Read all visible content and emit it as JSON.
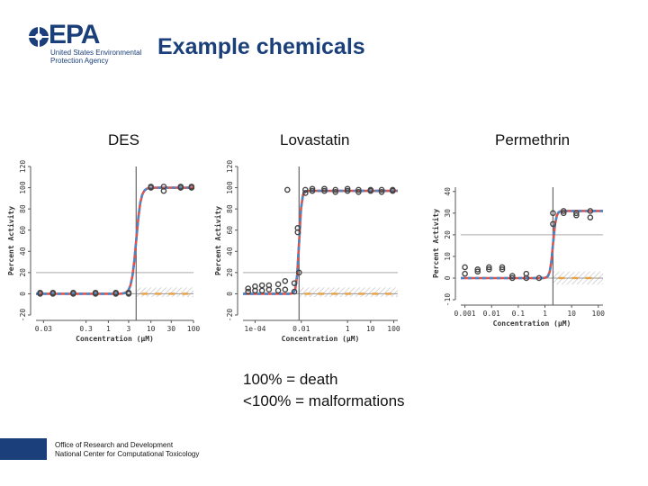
{
  "logo": {
    "name": "EPA",
    "subtitle": "United States Environmental Protection Agency"
  },
  "title": "Example chemicals",
  "note": {
    "line1": "100% = death",
    "line2": "<100% = malformations"
  },
  "footer": {
    "line1": "Office of Research and Development",
    "line2": "National Center for Computational Toxicology"
  },
  "colors": {
    "brand": "#1a3f7a",
    "fit_blue": "#4a86c8",
    "fit_red": "#d9534f",
    "orange": "#e8a040",
    "points": "#444444"
  },
  "chart_data": [
    {
      "type": "scatter",
      "title": "DES",
      "xlabel": "Concentration (µM)",
      "ylabel": "Percent Activity",
      "xscale": "log",
      "xticks": [
        0.03,
        0.3,
        1,
        3,
        10,
        30,
        100
      ],
      "xticklabels": [
        "0.03",
        "0.3",
        "1",
        "3",
        "10",
        "30",
        "100"
      ],
      "xlim": [
        0.02,
        100
      ],
      "yticks": [
        -20,
        0,
        20,
        40,
        60,
        80,
        100,
        120
      ],
      "ylim": [
        -20,
        120
      ],
      "cutoff": 20,
      "ac50": 4.5,
      "top": 100,
      "points": [
        [
          0.025,
          0
        ],
        [
          0.025,
          1
        ],
        [
          0.05,
          0
        ],
        [
          0.05,
          1
        ],
        [
          0.15,
          0
        ],
        [
          0.15,
          1
        ],
        [
          0.5,
          0
        ],
        [
          0.5,
          1
        ],
        [
          1.5,
          0
        ],
        [
          1.5,
          1
        ],
        [
          3,
          0
        ],
        [
          3,
          1
        ],
        [
          10,
          100
        ],
        [
          10,
          101
        ],
        [
          20,
          97
        ],
        [
          20,
          101
        ],
        [
          50,
          100
        ],
        [
          50,
          101
        ],
        [
          90,
          100
        ],
        [
          90,
          101
        ]
      ]
    },
    {
      "type": "scatter",
      "title": "Lovastatin",
      "xlabel": "Concentration (µM)",
      "ylabel": "Percent Activity",
      "xscale": "log",
      "xticks": [
        0.0001,
        0.01,
        1,
        10,
        100
      ],
      "xticklabels": [
        "1e-04",
        "0.01",
        "1",
        "10",
        "100"
      ],
      "xlim": [
        3e-05,
        150
      ],
      "yticks": [
        -20,
        0,
        20,
        40,
        60,
        80,
        100,
        120
      ],
      "ylim": [
        -20,
        120
      ],
      "cutoff": 20,
      "ac50": 0.008,
      "top": 97,
      "points": [
        [
          5e-05,
          2
        ],
        [
          5e-05,
          5
        ],
        [
          0.0001,
          3
        ],
        [
          0.0001,
          7
        ],
        [
          0.0002,
          3
        ],
        [
          0.0002,
          8
        ],
        [
          0.0004,
          4
        ],
        [
          0.0004,
          8
        ],
        [
          0.001,
          3
        ],
        [
          0.001,
          9
        ],
        [
          0.002,
          4
        ],
        [
          0.002,
          12
        ],
        [
          0.005,
          2
        ],
        [
          0.005,
          10
        ],
        [
          0.007,
          58
        ],
        [
          0.007,
          62
        ],
        [
          0.008,
          20
        ],
        [
          0.015,
          95
        ],
        [
          0.015,
          98
        ],
        [
          0.03,
          97
        ],
        [
          0.03,
          99
        ],
        [
          0.1,
          97
        ],
        [
          0.1,
          99
        ],
        [
          0.3,
          96
        ],
        [
          0.3,
          98
        ],
        [
          1,
          97
        ],
        [
          1,
          99
        ],
        [
          3,
          96
        ],
        [
          3,
          98
        ],
        [
          10,
          97
        ],
        [
          10,
          98
        ],
        [
          30,
          96
        ],
        [
          30,
          98
        ],
        [
          90,
          97
        ],
        [
          90,
          98
        ],
        [
          0.0025,
          98
        ]
      ]
    },
    {
      "type": "scatter",
      "title": "Permethrin",
      "xlabel": "Concentration (µM)",
      "ylabel": "Percent Activity",
      "xscale": "log",
      "xticks": [
        0.001,
        0.01,
        0.1,
        1,
        10,
        100
      ],
      "xticklabels": [
        "0.001",
        "0.01",
        "0.1",
        "1",
        "10",
        "100"
      ],
      "xlim": [
        0.0007,
        150
      ],
      "yticks": [
        -10,
        0,
        10,
        20,
        30,
        40
      ],
      "ylim": [
        -10,
        42
      ],
      "cutoff": 20,
      "ac50": 2,
      "top": 31,
      "points": [
        [
          0.001,
          2
        ],
        [
          0.001,
          5
        ],
        [
          0.003,
          3
        ],
        [
          0.003,
          4
        ],
        [
          0.008,
          4
        ],
        [
          0.008,
          5
        ],
        [
          0.025,
          4
        ],
        [
          0.025,
          5
        ],
        [
          0.06,
          1
        ],
        [
          0.06,
          0
        ],
        [
          0.2,
          0
        ],
        [
          0.2,
          2
        ],
        [
          0.6,
          0
        ],
        [
          2,
          25
        ],
        [
          2,
          30
        ],
        [
          5,
          30
        ],
        [
          5,
          31
        ],
        [
          15,
          29
        ],
        [
          15,
          30
        ],
        [
          50,
          28
        ],
        [
          50,
          31
        ]
      ]
    }
  ]
}
